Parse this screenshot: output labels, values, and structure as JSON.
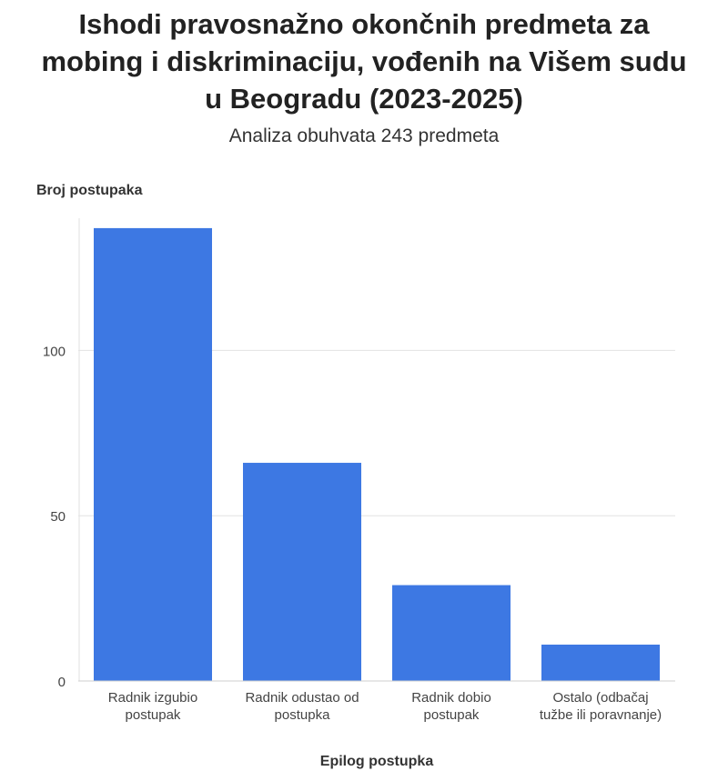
{
  "chart_data": {
    "type": "bar",
    "title": "Ishodi pravosnažno okončnih predmeta za mobing i diskriminaciju, vođenih na Višem sudu u Beogradu (2023-2025)",
    "subtitle": "Analiza obuhvata 243 predmeta",
    "y_label": "Broj postupaka",
    "x_label": "Epilog postupka",
    "categories": [
      "Radnik izgubio postupak",
      "Radnik odustao od postupka",
      "Radnik dobio postupak",
      "Ostalo (odbačaj tužbe ili poravnanje)"
    ],
    "values": [
      137,
      66,
      29,
      11
    ],
    "color": "#3d78e3",
    "ylim": [
      0,
      140
    ],
    "yticks": [
      0,
      50,
      100
    ],
    "grid": true
  }
}
